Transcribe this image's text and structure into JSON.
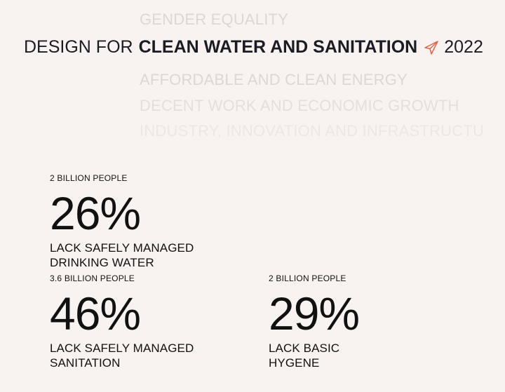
{
  "carousel": {
    "items": [
      "GENDER EQUALITY",
      "AFFORDABLE AND CLEAN ENERGY",
      "DECENT WORK AND ECONOMIC GROWTH",
      "INDUSTRY, INNOVATION AND INFRASTRUCTURE"
    ]
  },
  "headline": {
    "prefix": "DESIGN FOR",
    "goal": "CLEAN WATER AND SANITATION",
    "icon": "paper-plane-icon",
    "accent_color": "#e0664a",
    "year": "2022"
  },
  "stats": [
    {
      "count": "2 BILLION PEOPLE",
      "percent": "26%",
      "line1": "LACK SAFELY MANAGED",
      "line2": "DRINKING WATER"
    },
    {
      "count": "3.6 BILLION PEOPLE",
      "percent": "46%",
      "line1": "LACK SAFELY MANAGED",
      "line2": "SANITATION"
    },
    {
      "count": "2 BILLION PEOPLE",
      "percent": "29%",
      "line1": "LACK BASIC",
      "line2": "HYGENE"
    }
  ]
}
